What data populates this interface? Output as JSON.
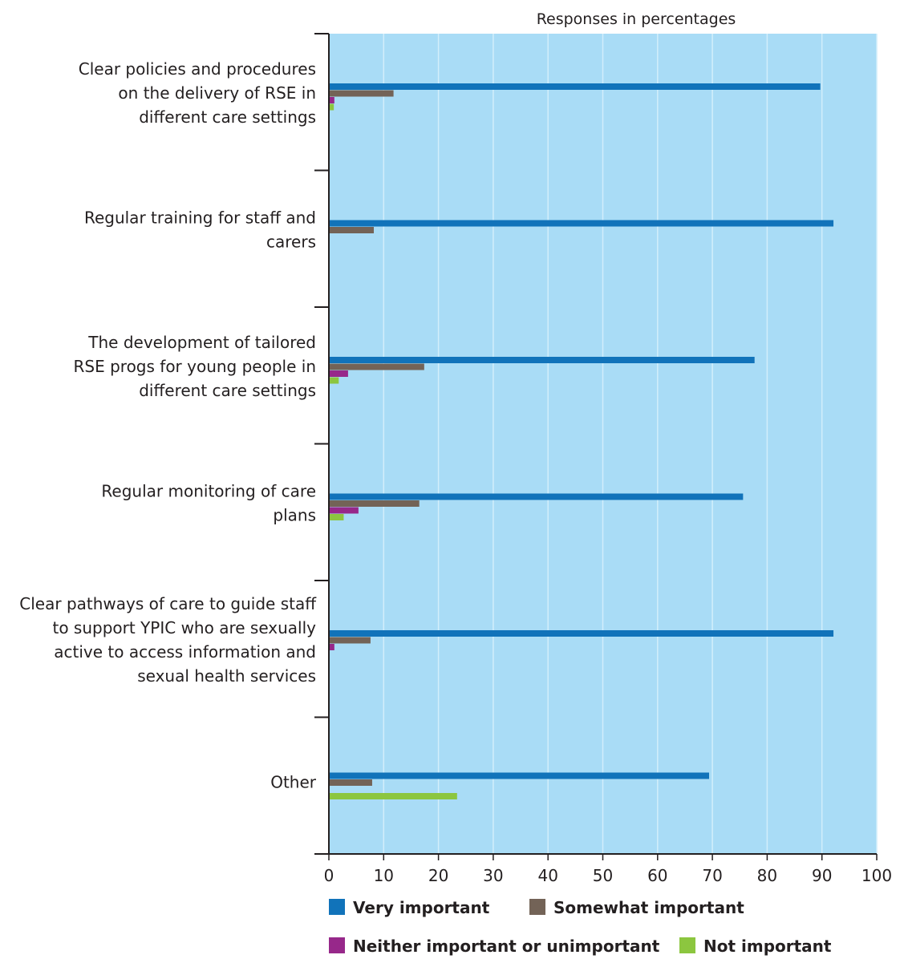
{
  "chart_data": {
    "type": "bar",
    "orientation": "horizontal",
    "title": "Responses in percentages",
    "xlabel": "",
    "ylabel": "",
    "xlim": [
      0,
      100
    ],
    "x_ticks": [
      0,
      10,
      20,
      30,
      40,
      50,
      60,
      70,
      80,
      90,
      100
    ],
    "grid": true,
    "legend_position": "bottom",
    "plot_background": "#a9dcf6",
    "categories": [
      [
        "Clear policies and procedures",
        "on the delivery of RSE in",
        "different care settings"
      ],
      [
        "Regular training for staff and",
        "carers"
      ],
      [
        "The development of tailored",
        "RSE progs for young people in",
        "different care settings"
      ],
      [
        "Regular monitoring of care",
        "plans"
      ],
      [
        "Clear pathways of care to guide staff",
        "to support YPIC who are sexually",
        "active to access information and",
        "sexual health services"
      ],
      [
        "Other"
      ]
    ],
    "series": [
      {
        "name": "Very important",
        "color": "#1173ba",
        "values": [
          89.7,
          92.1,
          77.7,
          75.6,
          92.1,
          69.4
        ]
      },
      {
        "name": "Somewhat important",
        "color": "#736357",
        "values": [
          11.8,
          8.2,
          17.4,
          16.5,
          7.6,
          7.9
        ]
      },
      {
        "name": "Neither important or unimportant",
        "color": "#97288a",
        "values": [
          1.0,
          0,
          3.5,
          5.4,
          1.0,
          0
        ]
      },
      {
        "name": "Not important",
        "color": "#8cc63f",
        "values": [
          0.9,
          0,
          1.8,
          2.7,
          0,
          23.4
        ]
      }
    ]
  }
}
